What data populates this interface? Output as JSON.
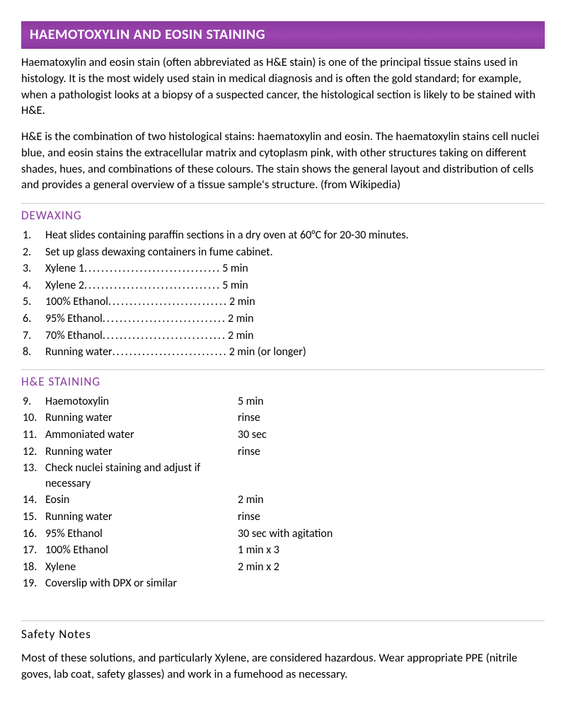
{
  "banner_title": "HAEMOTOXYLIN AND EOSIN STAINING",
  "banner_bg": "#8b3a9e",
  "banner_text_color": "#ffffff",
  "heading_color": "#8b3a9e",
  "body_text_color": "#000000",
  "divider_color": "#cccccc",
  "intro": {
    "p1": "Haematoxylin and eosin stain (often abbreviated as H&E stain) is one of the principal tissue stains used in histology. It is the most widely used stain in medical diagnosis and is often the gold standard; for example, when a pathologist looks at a biopsy of a suspected cancer, the histological section is likely to be stained with H&E.",
    "p2": "H&E is the combination of two histological stains: haematoxylin and eosin. The haematoxylin stains cell nuclei blue, and eosin stains the extracellular matrix and cytoplasm pink, with other structures taking on different shades, hues, and combinations of these colours. The stain shows the general layout and distribution of cells and provides a general overview of a tissue sample's structure. (from Wikipedia)"
  },
  "dewaxing": {
    "heading": "DEWAXING",
    "steps": [
      {
        "text": "Heat slides containing paraffin sections in a dry oven at 60°C for 20-30 minutes.",
        "time": "",
        "dotted": false
      },
      {
        "text": "Set up glass dewaxing containers in fume cabinet.",
        "time": "",
        "dotted": false
      },
      {
        "text": "Xylene 1",
        "time": "5 min",
        "dotted": true
      },
      {
        "text": "Xylene 2",
        "time": "5 min",
        "dotted": true
      },
      {
        "text": "100% Ethanol",
        "time": "2 min",
        "dotted": true
      },
      {
        "text": "95% Ethanol",
        "time": "2 min",
        "dotted": true
      },
      {
        "text": "70% Ethanol",
        "time": "2 min",
        "dotted": true
      },
      {
        "text": "Running water",
        "time": "2 min (or longer)",
        "dotted": true
      }
    ]
  },
  "staining": {
    "heading": "H&E STAINING",
    "start_number": 9,
    "steps": [
      {
        "text": "Haemotoxylin",
        "time": "5 min"
      },
      {
        "text": "Running water",
        "time": "rinse"
      },
      {
        "text": "Ammoniated water",
        "time": "30 sec"
      },
      {
        "text": "Running water",
        "time": "rinse"
      },
      {
        "text": "Check nuclei staining and adjust if necessary",
        "time": ""
      },
      {
        "text": "Eosin",
        "time": "2 min"
      },
      {
        "text": "Running water",
        "time": "rinse"
      },
      {
        "text": "95% Ethanol",
        "time": "30 sec with agitation"
      },
      {
        "text": "100% Ethanol",
        "time": "1 min x 3"
      },
      {
        "text": "Xylene",
        "time": "2 min x 2"
      },
      {
        "text": "Coverslip with DPX or similar",
        "time": ""
      }
    ]
  },
  "safety": {
    "heading": "Safety Notes",
    "text": "Most of these solutions, and particularly Xylene, are considered hazardous. Wear appropriate PPE (nitrile goves, lab coat, safety glasses) and work in a fumehood as necessary."
  }
}
